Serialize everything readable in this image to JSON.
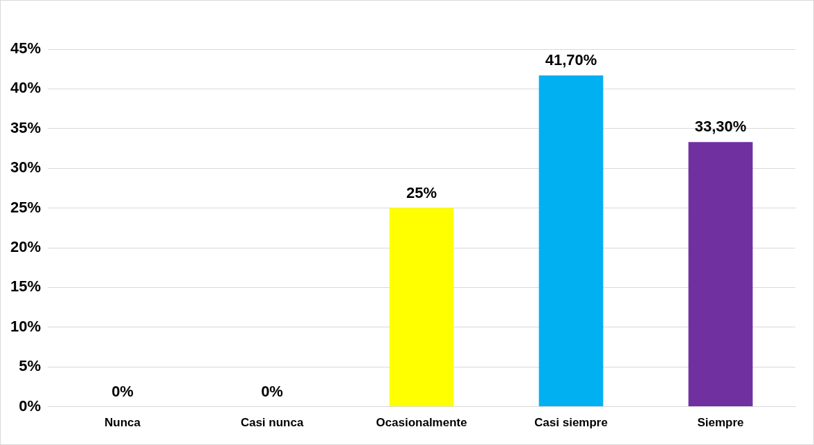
{
  "chart_data": {
    "type": "bar",
    "categories": [
      "Nunca",
      "Casi nunca",
      "Ocasionalmente",
      "Casi siempre",
      "Siempre"
    ],
    "values": [
      0,
      0,
      25,
      41.7,
      33.3
    ],
    "colors": [
      "#ffff00",
      "#ffff00",
      "#ffff00",
      "#00b0f0",
      "#7030a0"
    ],
    "value_labels": [
      "0%",
      "0%",
      "25%",
      "41,70%",
      "33,30%"
    ],
    "ylim": [
      0,
      45
    ],
    "yticks": [
      {
        "value": 0,
        "label": "0%"
      },
      {
        "value": 5,
        "label": "5%"
      },
      {
        "value": 10,
        "label": "10%"
      },
      {
        "value": 15,
        "label": "15%"
      },
      {
        "value": 20,
        "label": "20%"
      },
      {
        "value": 25,
        "label": "25%"
      },
      {
        "value": 30,
        "label": "30%"
      },
      {
        "value": 35,
        "label": "35%"
      },
      {
        "value": 40,
        "label": "40%"
      },
      {
        "value": 45,
        "label": "45%"
      }
    ],
    "grid": "y",
    "legend": false
  }
}
